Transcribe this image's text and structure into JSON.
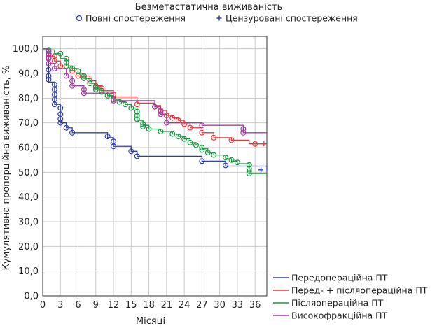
{
  "chart_data": {
    "type": "line",
    "title": "Безметастатична виживаність",
    "xlabel": "Місяці",
    "ylabel": "Кумулятивна пропорційна виживаність, %",
    "xlim": [
      0,
      38
    ],
    "ylim": [
      0,
      105
    ],
    "xticks": [
      0,
      3,
      6,
      9,
      12,
      15,
      18,
      21,
      24,
      27,
      30,
      33,
      36
    ],
    "yticks": [
      0,
      10,
      20,
      30,
      40,
      50,
      60,
      70,
      80,
      90,
      100
    ],
    "ytick_labels": [
      "0,0",
      "10,0",
      "20,0",
      "30,0",
      "40,0",
      "50,0",
      "60,0",
      "70,0",
      "80,0",
      "90,0",
      "100,0"
    ],
    "grid": true,
    "marker_legend": {
      "complete": "Повні спостереження",
      "censored": "Цензуровані спостереження"
    },
    "series": [
      {
        "name": "Передопераційна ПТ",
        "color": "#2f3fb0",
        "steps": [
          [
            0,
            100
          ],
          [
            1,
            86.5
          ],
          [
            2,
            77.5
          ],
          [
            3,
            70
          ],
          [
            4,
            68
          ],
          [
            5,
            66
          ],
          [
            11,
            64
          ],
          [
            12,
            60.5
          ],
          [
            15,
            58.5
          ],
          [
            16,
            56.5
          ],
          [
            27,
            54.5
          ],
          [
            31,
            52.5
          ],
          [
            38,
            51
          ]
        ],
        "complete": [
          [
            1,
            98
          ],
          [
            1,
            96
          ],
          [
            1,
            94
          ],
          [
            1,
            91.5
          ],
          [
            1,
            89
          ],
          [
            1,
            87.5
          ],
          [
            2,
            85.5
          ],
          [
            2,
            83.5
          ],
          [
            2,
            81.5
          ],
          [
            2,
            79.5
          ],
          [
            2,
            77.5
          ],
          [
            3,
            76
          ],
          [
            3,
            73.5
          ],
          [
            3,
            71.5
          ],
          [
            3,
            70
          ],
          [
            4,
            68
          ],
          [
            5,
            66
          ],
          [
            11,
            64.5
          ],
          [
            12,
            62.5
          ],
          [
            12,
            60.5
          ],
          [
            15,
            58.5
          ],
          [
            16,
            56.5
          ],
          [
            27,
            54.5
          ],
          [
            31,
            52.8
          ]
        ],
        "censored": [
          [
            37,
            51
          ]
        ]
      },
      {
        "name": "Перед- + післяопераційна ПТ",
        "color": "#e8363a",
        "steps": [
          [
            0,
            100
          ],
          [
            1,
            97
          ],
          [
            2,
            95
          ],
          [
            3,
            93
          ],
          [
            5,
            91
          ],
          [
            6,
            89
          ],
          [
            8,
            87
          ],
          [
            9,
            85
          ],
          [
            10,
            83
          ],
          [
            12,
            80.5
          ],
          [
            16,
            78
          ],
          [
            19,
            77
          ],
          [
            20,
            75
          ],
          [
            21,
            73
          ],
          [
            22,
            72
          ],
          [
            23,
            71
          ],
          [
            24,
            69.5
          ],
          [
            25,
            68
          ],
          [
            27,
            66
          ],
          [
            29,
            64
          ],
          [
            32,
            63
          ],
          [
            35,
            61.5
          ],
          [
            38,
            61.5
          ]
        ],
        "complete": [
          [
            1,
            98
          ],
          [
            1,
            96.5
          ],
          [
            2,
            97
          ],
          [
            2,
            95
          ],
          [
            3,
            93
          ],
          [
            5,
            91
          ],
          [
            6,
            89
          ],
          [
            8,
            87
          ],
          [
            9,
            85
          ],
          [
            10,
            84
          ],
          [
            10,
            83
          ],
          [
            12,
            81.5
          ],
          [
            12,
            79.5
          ],
          [
            16,
            77.5
          ],
          [
            19,
            76.5
          ],
          [
            20,
            75
          ],
          [
            21,
            73
          ],
          [
            22,
            72
          ],
          [
            23,
            71
          ],
          [
            24,
            69.5
          ],
          [
            25,
            68
          ],
          [
            27,
            66
          ],
          [
            29,
            64
          ],
          [
            32,
            63
          ],
          [
            36,
            61.5
          ]
        ],
        "censored": [
          [
            37.5,
            61.5
          ]
        ]
      },
      {
        "name": "Післяопераційна ПТ",
        "color": "#1a9641",
        "steps": [
          [
            0,
            99.5
          ],
          [
            2,
            98
          ],
          [
            3,
            96
          ],
          [
            4,
            93
          ],
          [
            5,
            92
          ],
          [
            6,
            90
          ],
          [
            7,
            88
          ],
          [
            8,
            86
          ],
          [
            9,
            84
          ],
          [
            10,
            82.5
          ],
          [
            11,
            81
          ],
          [
            12,
            79.5
          ],
          [
            13,
            78.5
          ],
          [
            14,
            77.5
          ],
          [
            15,
            76
          ],
          [
            16,
            71
          ],
          [
            17,
            69
          ],
          [
            18,
            67.5
          ],
          [
            20,
            66.5
          ],
          [
            22,
            65.5
          ],
          [
            23,
            64.5
          ],
          [
            24,
            63.5
          ],
          [
            25,
            62
          ],
          [
            26,
            61
          ],
          [
            27,
            59.5
          ],
          [
            28,
            58
          ],
          [
            29,
            57
          ],
          [
            31,
            55.5
          ],
          [
            32,
            54.5
          ],
          [
            33,
            53.5
          ],
          [
            35,
            49.5
          ],
          [
            38,
            49.5
          ]
        ],
        "complete": [
          [
            1,
            99.5
          ],
          [
            3,
            98
          ],
          [
            4,
            96
          ],
          [
            4,
            94.5
          ],
          [
            4,
            93
          ],
          [
            5,
            92
          ],
          [
            6,
            91
          ],
          [
            7,
            89
          ],
          [
            7,
            88
          ],
          [
            8,
            86
          ],
          [
            9,
            84.5
          ],
          [
            9,
            83.5
          ],
          [
            10,
            82.5
          ],
          [
            11,
            81
          ],
          [
            12,
            79.5
          ],
          [
            13,
            78.5
          ],
          [
            14,
            77.5
          ],
          [
            15,
            76
          ],
          [
            16,
            74.5
          ],
          [
            16,
            73
          ],
          [
            16,
            71.5
          ],
          [
            17,
            69.5
          ],
          [
            17,
            68.5
          ],
          [
            18,
            67.5
          ],
          [
            20,
            66.5
          ],
          [
            22,
            65.5
          ],
          [
            23,
            64.5
          ],
          [
            24,
            63.5
          ],
          [
            25,
            62
          ],
          [
            26,
            61
          ],
          [
            27,
            60
          ],
          [
            27,
            59
          ],
          [
            28,
            58
          ],
          [
            29,
            57
          ],
          [
            31,
            56
          ],
          [
            32,
            55
          ],
          [
            33,
            54
          ],
          [
            35,
            53
          ],
          [
            35,
            51.5
          ],
          [
            35,
            50.5
          ],
          [
            35,
            49.5
          ]
        ],
        "censored": []
      },
      {
        "name": "Високофракційна ПТ",
        "color": "#a43ca8",
        "steps": [
          [
            0,
            100
          ],
          [
            1,
            94
          ],
          [
            2,
            92
          ],
          [
            4,
            89
          ],
          [
            5,
            85
          ],
          [
            7,
            82
          ],
          [
            12,
            79
          ],
          [
            19,
            76.5
          ],
          [
            20,
            73.5
          ],
          [
            21,
            70
          ],
          [
            27,
            69
          ],
          [
            34,
            66
          ],
          [
            38,
            66
          ]
        ],
        "complete": [
          [
            1,
            99
          ],
          [
            1,
            97.5
          ],
          [
            1,
            96
          ],
          [
            1,
            94
          ],
          [
            2,
            92
          ],
          [
            4,
            89
          ],
          [
            5,
            87
          ],
          [
            5,
            85
          ],
          [
            7,
            83.5
          ],
          [
            7,
            82
          ],
          [
            12,
            79
          ],
          [
            19,
            76.5
          ],
          [
            20,
            74.5
          ],
          [
            20,
            73.5
          ],
          [
            21,
            70
          ],
          [
            27,
            69
          ],
          [
            34,
            67.5
          ],
          [
            34,
            66
          ]
        ],
        "censored": []
      }
    ]
  }
}
